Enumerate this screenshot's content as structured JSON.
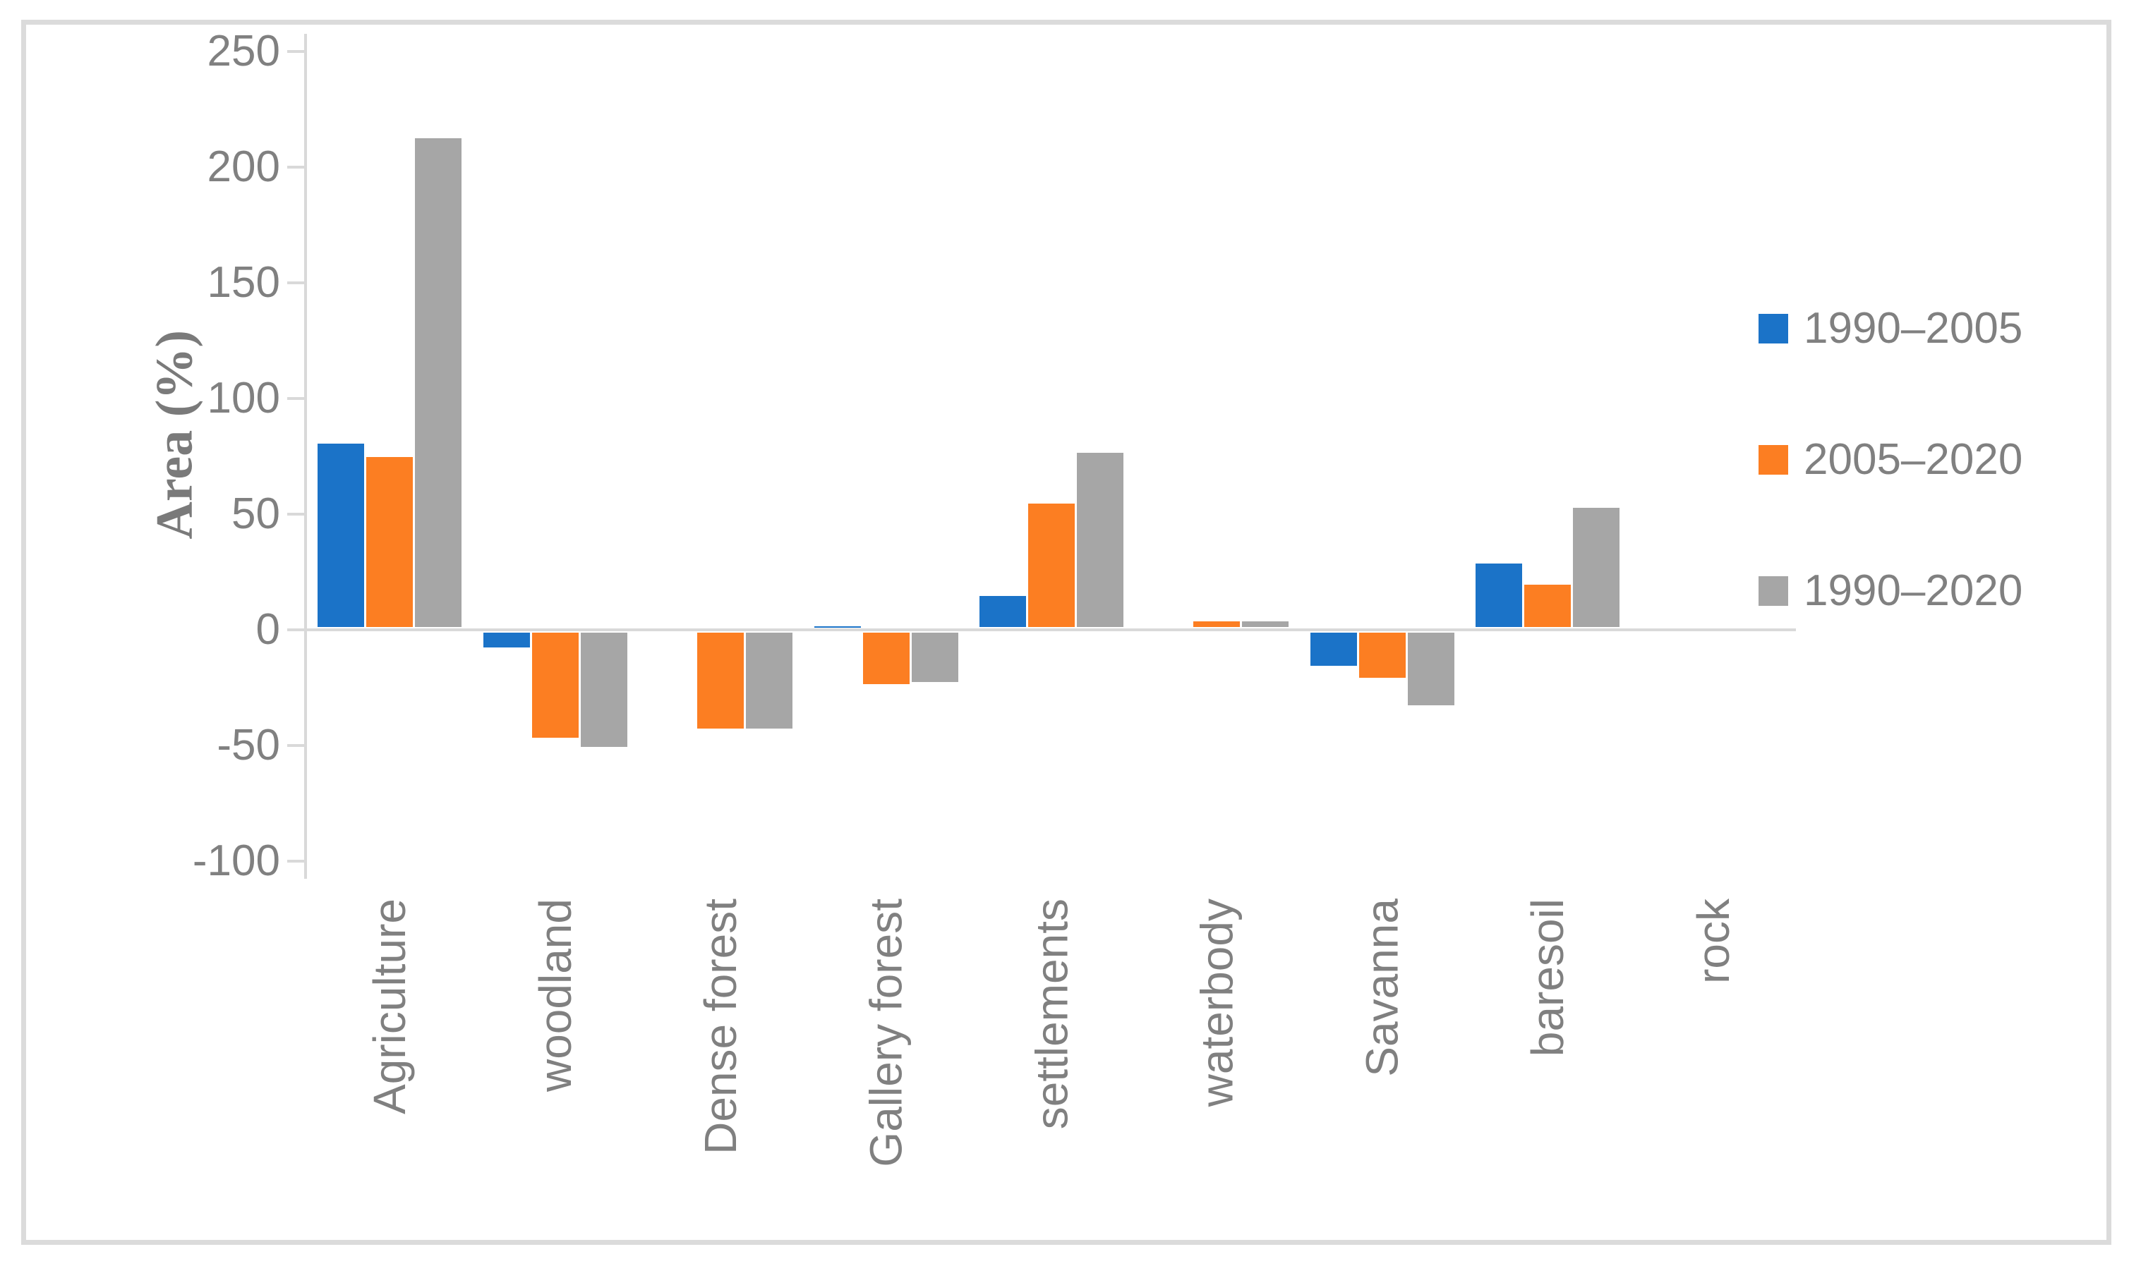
{
  "figure": {
    "background": "#ffffff",
    "border_color": "#dbdbdb",
    "axis_color": "#d9d9d9",
    "text_color": "#808080"
  },
  "chart_data": {
    "type": "bar",
    "title": "",
    "ylabel": "Area (%)",
    "xlabel": "",
    "ylim": [
      -100,
      250
    ],
    "yticks": [
      250,
      200,
      150,
      100,
      50,
      0,
      -50,
      -100
    ],
    "grid": false,
    "legend_position": "right",
    "categories": [
      "Agriculture",
      "woodland",
      "Dense forest",
      "Gallery forest",
      "settlements",
      "waterbody",
      "Savanna",
      "baresoil",
      "rock"
    ],
    "series": [
      {
        "name": "1990–2005",
        "color": "#1b73c8",
        "values": [
          80,
          -7,
          0,
          1,
          14,
          0,
          -15,
          28,
          0
        ]
      },
      {
        "name": "2005–2020",
        "color": "#fc7e22",
        "values": [
          74,
          -46,
          -42,
          -23,
          54,
          3,
          -20,
          19,
          0
        ]
      },
      {
        "name": "1990–2020",
        "color": "#a6a6a6",
        "values": [
          212,
          -50,
          -42,
          -22,
          76,
          3,
          -32,
          52,
          0
        ]
      }
    ]
  }
}
